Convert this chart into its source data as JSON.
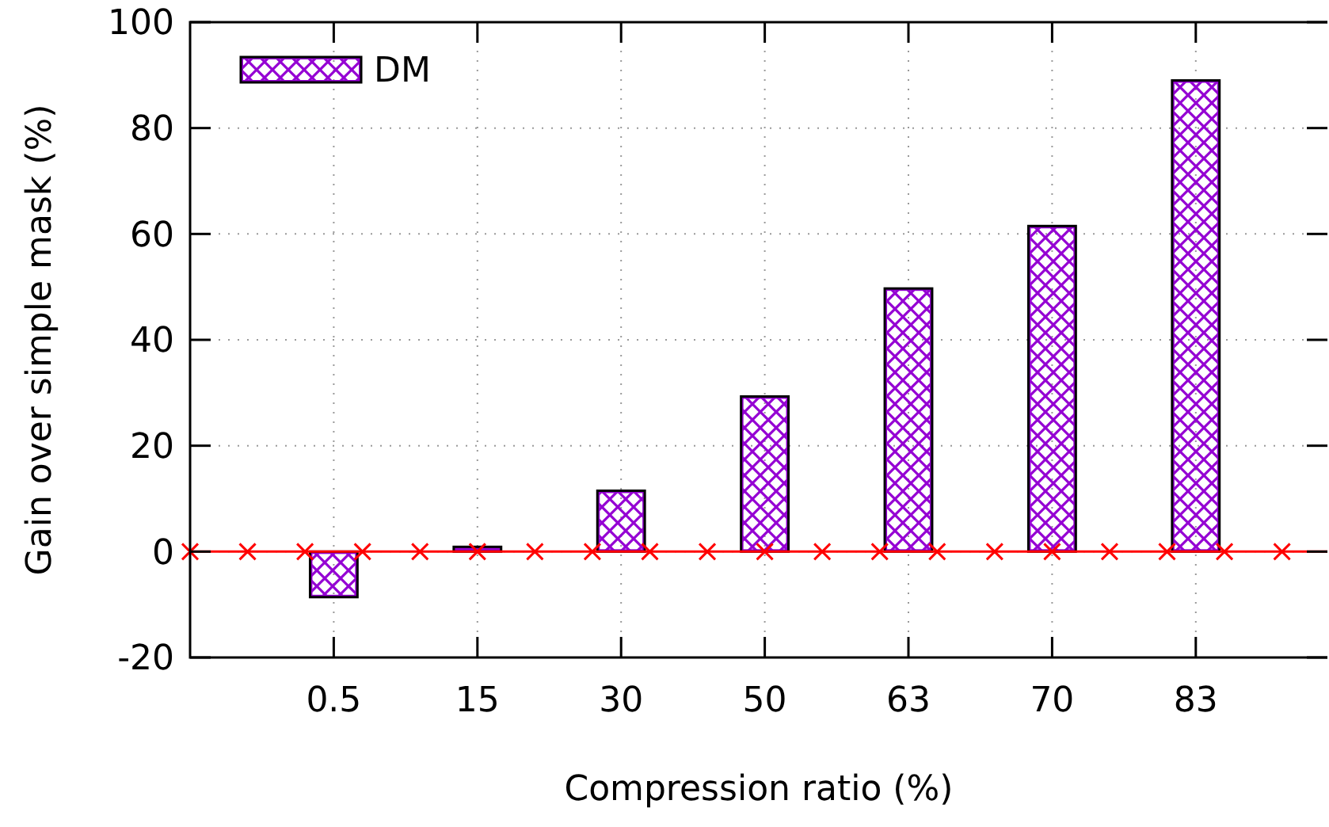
{
  "chart_data": {
    "type": "bar",
    "xlabel": "Compression ratio (%)",
    "ylabel": "Gain over simple mask (%)",
    "categories": [
      null,
      "0.5",
      "15",
      "30",
      "50",
      "63",
      "70",
      "83",
      null
    ],
    "ylim": [
      -20,
      100
    ],
    "yticks": [
      -20,
      0,
      20,
      40,
      60,
      80,
      100
    ],
    "grid": true,
    "legend": "top left",
    "series": [
      {
        "name": "DM",
        "color": "#9400d3",
        "values": [
          null,
          -8.6,
          0.9,
          11.5,
          29.3,
          49.7,
          61.5,
          89.0,
          null
        ]
      }
    ],
    "ref_lines": [
      {
        "axis": "y",
        "value": 0,
        "color": "#ff0000"
      }
    ]
  }
}
